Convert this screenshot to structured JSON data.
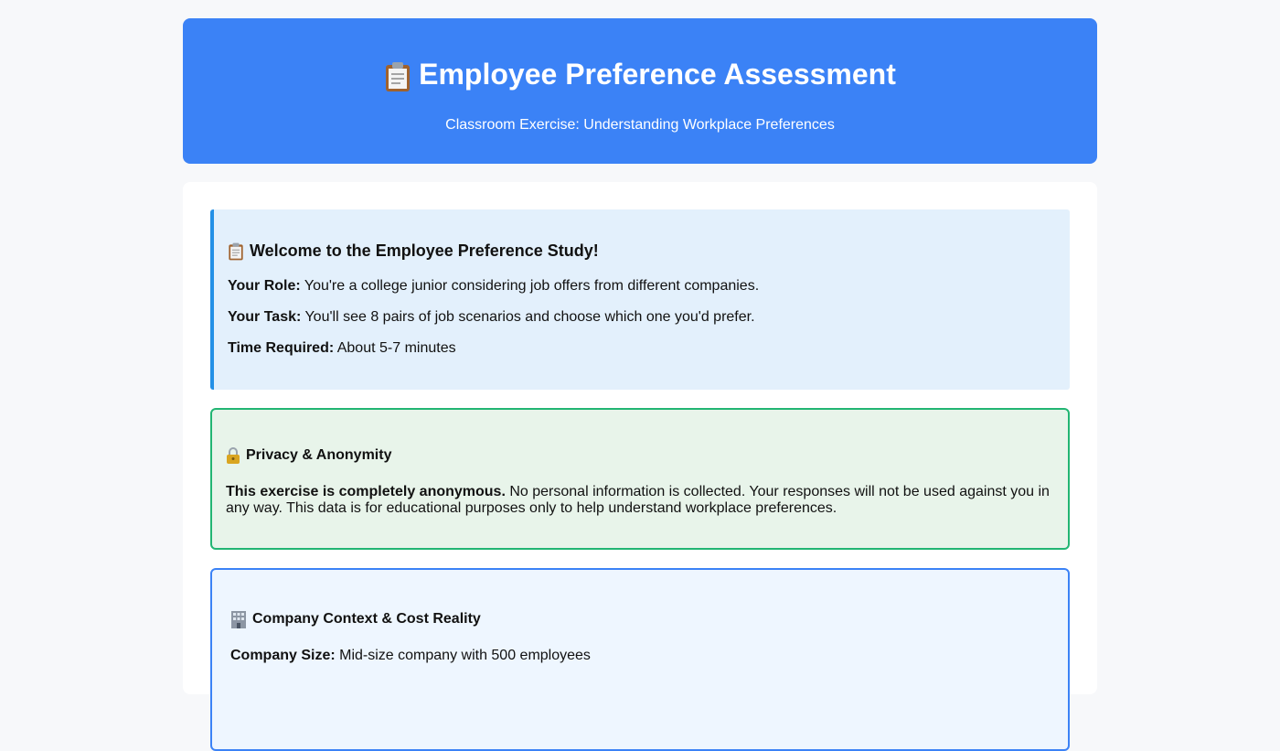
{
  "header": {
    "icon": "clipboard-icon",
    "title": "Employee Preference Assessment",
    "subtitle": "Classroom Exercise: Understanding Workplace Preferences"
  },
  "welcome": {
    "icon": "clipboard-icon",
    "title": "Welcome to the Employee Preference Study!",
    "role_label": "Your Role:",
    "role_text": " You're a college junior considering job offers from different companies.",
    "task_label": "Your Task:",
    "task_text": " You'll see 8 pairs of job scenarios and choose which one you'd prefer.",
    "time_label": "Time Required:",
    "time_text": " About 5-7 minutes"
  },
  "privacy": {
    "icon": "lock-icon",
    "title": "Privacy & Anonymity",
    "bold_text": "This exercise is completely anonymous.",
    "body_text": " No personal information is collected. Your responses will not be used against you in any way. This data is for educational purposes only to help understand workplace preferences."
  },
  "context": {
    "icon": "office-building-icon",
    "title": "Company Context & Cost Reality",
    "size_label": "Company Size:",
    "size_text": " Mid-size company with 500 employees"
  },
  "colors": {
    "hero": "#3b82f6",
    "welcome_bg": "#e3f0fc",
    "welcome_border": "#2490e6",
    "privacy_bg": "#e8f4ea",
    "privacy_border": "#22b573",
    "context_bg": "#eef6ff",
    "context_border": "#3b82f6"
  }
}
